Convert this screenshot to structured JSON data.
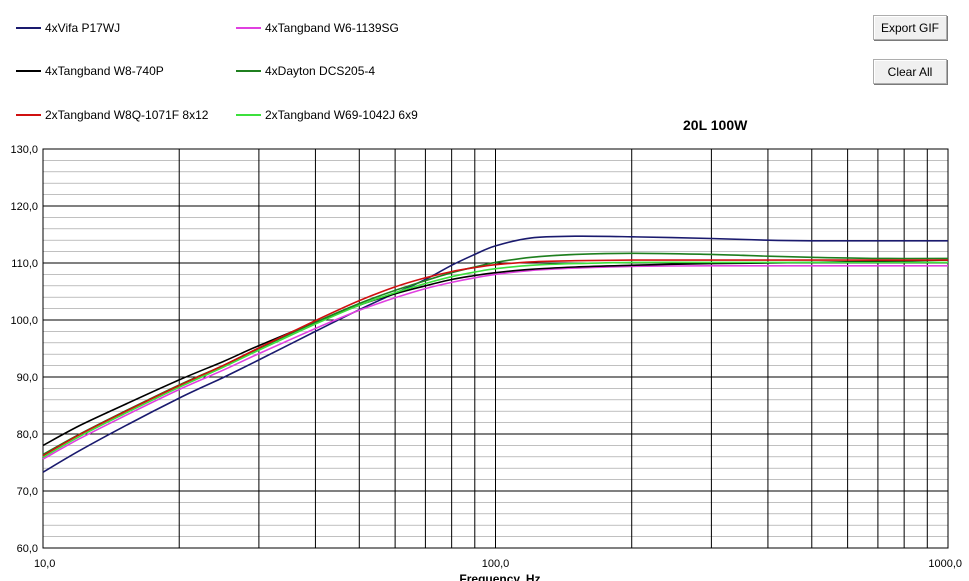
{
  "buttons": {
    "export_label": "Export GIF",
    "clear_label": "Clear All"
  },
  "chart_data": {
    "type": "line",
    "title": "20L 100W",
    "xlabel": "Frequency, Hz",
    "ylabel": "",
    "xscale": "log",
    "xlim": [
      10,
      1000
    ],
    "ylim": [
      60,
      130
    ],
    "grid": true,
    "legend_position": "top-left",
    "x_tick_labels": [
      "10,0",
      "100,0",
      "1000,0"
    ],
    "y_tick_labels": [
      "130,0",
      "120,0",
      "110,0",
      "100,0",
      "90,0",
      "80,0",
      "70,0",
      "60,0"
    ],
    "x": [
      10,
      12,
      15,
      20,
      25,
      30,
      40,
      50,
      60,
      70,
      80,
      90,
      100,
      120,
      150,
      200,
      300,
      400,
      500,
      700,
      1000
    ],
    "series": [
      {
        "name": "4xVifa P17WJ",
        "color": "#1a1a6e",
        "values": [
          73.3,
          77.0,
          81.2,
          86.3,
          89.9,
          93.0,
          98.0,
          101.8,
          104.7,
          107.1,
          109.6,
          111.5,
          113.0,
          114.4,
          114.7,
          114.6,
          114.3,
          114.0,
          113.9,
          113.9,
          113.9
        ]
      },
      {
        "name": "4xTangband W6-1139SG",
        "color": "#e040e0",
        "values": [
          75.6,
          79.1,
          83.0,
          87.8,
          91.2,
          94.1,
          98.5,
          101.7,
          103.9,
          105.5,
          106.6,
          107.4,
          108.0,
          108.7,
          109.1,
          109.4,
          109.5,
          109.5,
          109.5,
          109.5,
          109.5
        ]
      },
      {
        "name": "4xTangband W8-740P",
        "color": "#000000",
        "values": [
          78.0,
          81.4,
          85.0,
          89.5,
          92.7,
          95.5,
          99.6,
          102.6,
          104.6,
          106.0,
          107.1,
          107.8,
          108.3,
          108.9,
          109.3,
          109.6,
          109.9,
          110.0,
          110.1,
          110.3,
          110.5
        ]
      },
      {
        "name": "4xDayton DCS205-4",
        "color": "#1f7f1f",
        "values": [
          76.4,
          79.9,
          83.8,
          88.6,
          92.0,
          95.0,
          99.6,
          102.9,
          105.2,
          106.9,
          108.3,
          109.3,
          110.1,
          111.0,
          111.5,
          111.7,
          111.5,
          111.2,
          111.0,
          110.8,
          110.8
        ]
      },
      {
        "name": "2xTangband W8Q-1071F 8x12",
        "color": "#d01010",
        "values": [
          76.2,
          79.8,
          83.7,
          88.5,
          92.0,
          95.1,
          99.9,
          103.4,
          105.8,
          107.4,
          108.5,
          109.2,
          109.7,
          110.2,
          110.4,
          110.5,
          110.5,
          110.5,
          110.5,
          110.5,
          110.5
        ]
      },
      {
        "name": "2xTangband W69-1042J 6x9",
        "color": "#3ce03c",
        "values": [
          75.9,
          79.5,
          83.4,
          88.2,
          91.7,
          94.7,
          99.3,
          102.6,
          104.8,
          106.4,
          107.6,
          108.4,
          109.0,
          109.6,
          109.9,
          110.1,
          110.1,
          110.1,
          110.1,
          110.1,
          110.1
        ]
      }
    ]
  }
}
